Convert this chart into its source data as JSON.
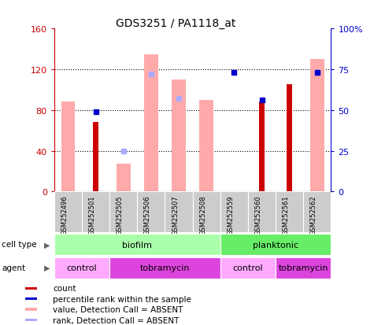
{
  "title": "GDS3251 / PA1118_at",
  "samples": [
    "GSM252496",
    "GSM252501",
    "GSM252505",
    "GSM252506",
    "GSM252507",
    "GSM252508",
    "GSM252559",
    "GSM252560",
    "GSM252561",
    "GSM252562"
  ],
  "count_values": [
    null,
    68,
    null,
    null,
    null,
    null,
    null,
    88,
    105,
    null
  ],
  "count_color": "#cc0000",
  "rank_values": [
    null,
    49,
    null,
    null,
    null,
    null,
    73,
    56,
    null,
    73
  ],
  "rank_color": "#0000cc",
  "value_absent": [
    88,
    null,
    27,
    135,
    110,
    90,
    null,
    null,
    null,
    130
  ],
  "value_absent_color": "#ffaaaa",
  "rank_absent_values": [
    null,
    null,
    25,
    72,
    57,
    null,
    null,
    null,
    null,
    73
  ],
  "rank_absent_color": "#aaaaff",
  "ylim_left": [
    0,
    160
  ],
  "ylim_right": [
    0,
    100
  ],
  "yticks_left": [
    0,
    40,
    80,
    120,
    160
  ],
  "ytick_labels_left": [
    "0",
    "40",
    "80",
    "120",
    "160"
  ],
  "yticks_right": [
    0,
    25,
    50,
    75,
    100
  ],
  "ytick_labels_right": [
    "0",
    "25",
    "50",
    "75",
    "100%"
  ],
  "cell_type_groups": [
    {
      "label": "biofilm",
      "start": 0,
      "end": 6,
      "color": "#aaffaa"
    },
    {
      "label": "planktonic",
      "start": 6,
      "end": 10,
      "color": "#66ee66"
    }
  ],
  "agent_groups": [
    {
      "label": "control",
      "start": 0,
      "end": 2,
      "color": "#ffaaff"
    },
    {
      "label": "tobramycin",
      "start": 2,
      "end": 6,
      "color": "#dd44dd"
    },
    {
      "label": "control",
      "start": 6,
      "end": 8,
      "color": "#ffaaff"
    },
    {
      "label": "tobramycin",
      "start": 8,
      "end": 10,
      "color": "#dd44dd"
    }
  ],
  "legend_items": [
    {
      "label": "count",
      "color": "#cc0000"
    },
    {
      "label": "percentile rank within the sample",
      "color": "#0000cc"
    },
    {
      "label": "value, Detection Call = ABSENT",
      "color": "#ffaaaa"
    },
    {
      "label": "rank, Detection Call = ABSENT",
      "color": "#aaaaff"
    }
  ],
  "cell_type_label": "cell type",
  "agent_label": "agent",
  "pink_bar_width": 0.5,
  "red_bar_width": 0.18,
  "marker_size": 5
}
